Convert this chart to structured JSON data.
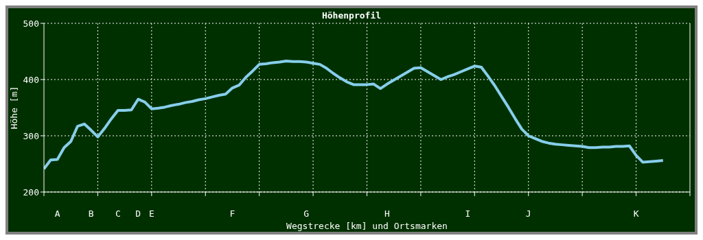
{
  "chart_data": {
    "type": "line",
    "title": "Höhenprofil",
    "xlabel": "Wegstrecke [km] und Ortsmarken",
    "ylabel": "Höhe [m]",
    "categories": [
      null,
      null,
      "A",
      null,
      null,
      null,
      null,
      "B",
      null,
      null,
      null,
      "C",
      null,
      null,
      "D",
      null,
      "E",
      null,
      null,
      null,
      null,
      null,
      null,
      null,
      null,
      null,
      null,
      null,
      "F",
      null,
      null,
      null,
      null,
      null,
      null,
      null,
      null,
      null,
      null,
      "G",
      null,
      null,
      null,
      null,
      null,
      null,
      null,
      null,
      null,
      null,
      null,
      "H",
      null,
      null,
      null,
      null,
      null,
      null,
      null,
      null,
      null,
      null,
      null,
      "I",
      null,
      null,
      null,
      null,
      null,
      null,
      null,
      null,
      "J",
      null,
      null,
      null,
      null,
      null,
      null,
      null,
      null,
      null,
      null,
      null,
      null,
      null,
      null,
      null,
      "K",
      null,
      null,
      null,
      null,
      null,
      null,
      null,
      null
    ],
    "series": [
      {
        "color": "#87ceeb",
        "values": [
          241,
          257,
          258,
          279,
          290,
          317,
          321,
          310,
          298,
          313,
          330,
          345,
          345,
          346,
          365,
          360,
          348,
          349,
          351,
          354,
          356,
          359,
          361,
          364,
          366,
          369,
          372,
          374,
          385,
          390,
          404,
          415,
          427,
          428,
          430,
          431,
          433,
          432,
          432,
          431,
          429,
          427,
          420,
          411,
          403,
          396,
          391,
          391,
          391,
          392,
          384,
          392,
          399,
          406,
          413,
          420,
          421,
          414,
          407,
          400,
          405,
          409,
          414,
          419,
          424,
          422,
          406,
          389,
          370,
          351,
          331,
          312,
          300,
          295,
          290,
          287,
          285,
          284,
          283,
          282,
          281,
          279,
          279,
          280,
          280,
          281,
          281,
          282,
          265,
          253,
          254,
          255,
          256,
          null,
          null,
          null,
          null
        ]
      }
    ],
    "ylim": [
      200,
      500
    ],
    "yticks": [
      200,
      300,
      400,
      500
    ],
    "grid": true,
    "marker": "none",
    "line_style": "solid"
  }
}
